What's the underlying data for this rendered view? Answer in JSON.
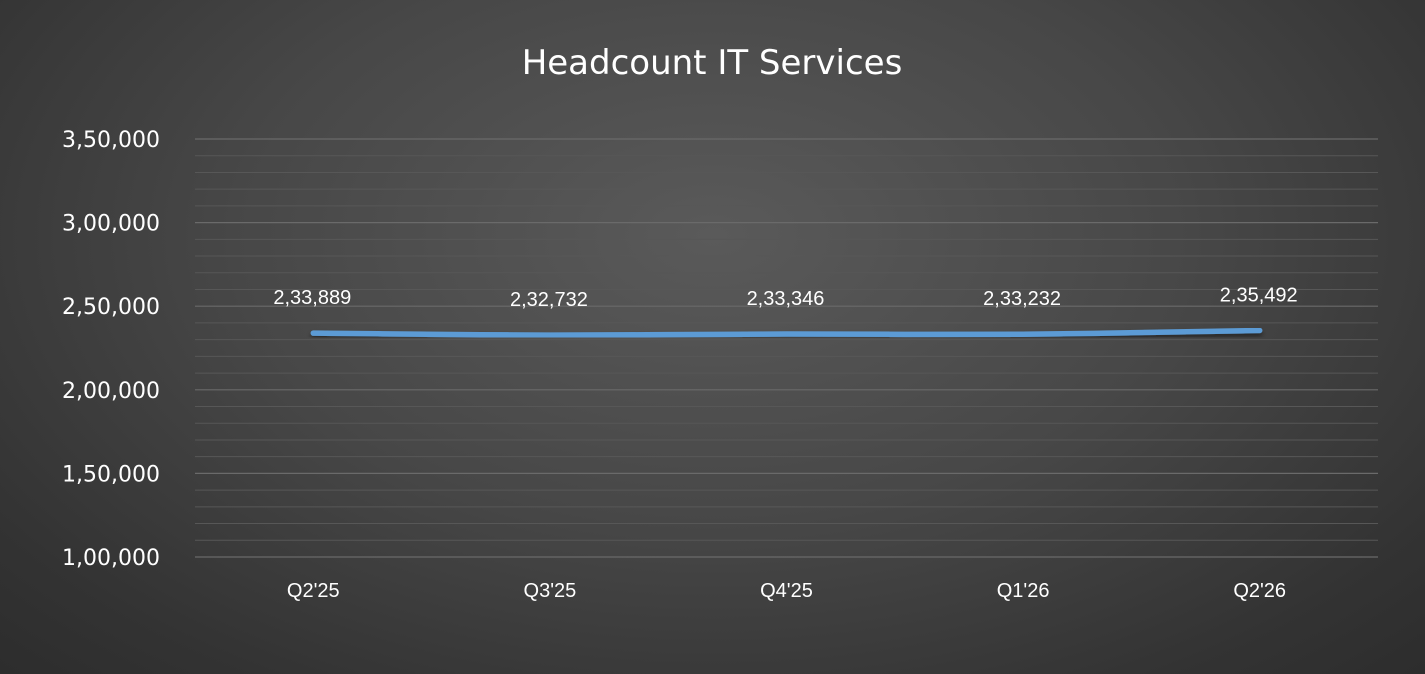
{
  "chart_data": {
    "type": "line",
    "title": "Headcount IT Services",
    "categories": [
      "Q2'25",
      "Q3'25",
      "Q4'25",
      "Q1'26",
      "Q2'26"
    ],
    "values": [
      233889,
      232732,
      233346,
      233232,
      235492
    ],
    "data_labels": [
      "2,33,889",
      "2,32,732",
      "2,33,346",
      "2,33,232",
      "2,35,492"
    ],
    "ylim": [
      100000,
      350000
    ],
    "y_ticks": [
      100000,
      150000,
      200000,
      250000,
      300000,
      350000
    ],
    "y_tick_labels": [
      "1,00,000",
      "1,50,000",
      "2,00,000",
      "2,50,000",
      "3,00,000",
      "3,50,000"
    ],
    "y_minor_step": 10000,
    "grid": true,
    "line_color": "#5b9bd5",
    "legend": "none"
  }
}
